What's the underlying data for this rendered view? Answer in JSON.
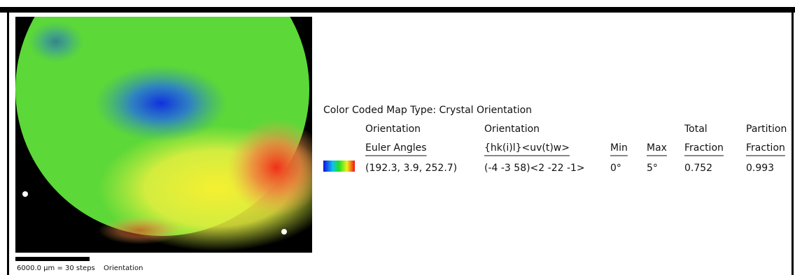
{
  "map": {
    "scale_label": "6000.0 µm = 30 steps",
    "map_label": "Orientation"
  },
  "legend": {
    "title": "Color Coded Map Type: Crystal Orientation",
    "columns": [
      {
        "lines": [
          "Orientation",
          "Euler Angles"
        ]
      },
      {
        "lines": [
          "Orientation",
          "{hk(i)l}<uv(t)w>"
        ]
      },
      {
        "lines": [
          "Min"
        ]
      },
      {
        "lines": [
          "Max"
        ]
      },
      {
        "lines": [
          "Total",
          "Fraction"
        ]
      },
      {
        "lines": [
          "Partition",
          "Fraction"
        ]
      }
    ],
    "row": [
      "(192.3, 3.9, 252.7)",
      "(-4 -3 58)<2 -22 -1>",
      "0°",
      "5°",
      "0.752",
      "0.993"
    ]
  }
}
